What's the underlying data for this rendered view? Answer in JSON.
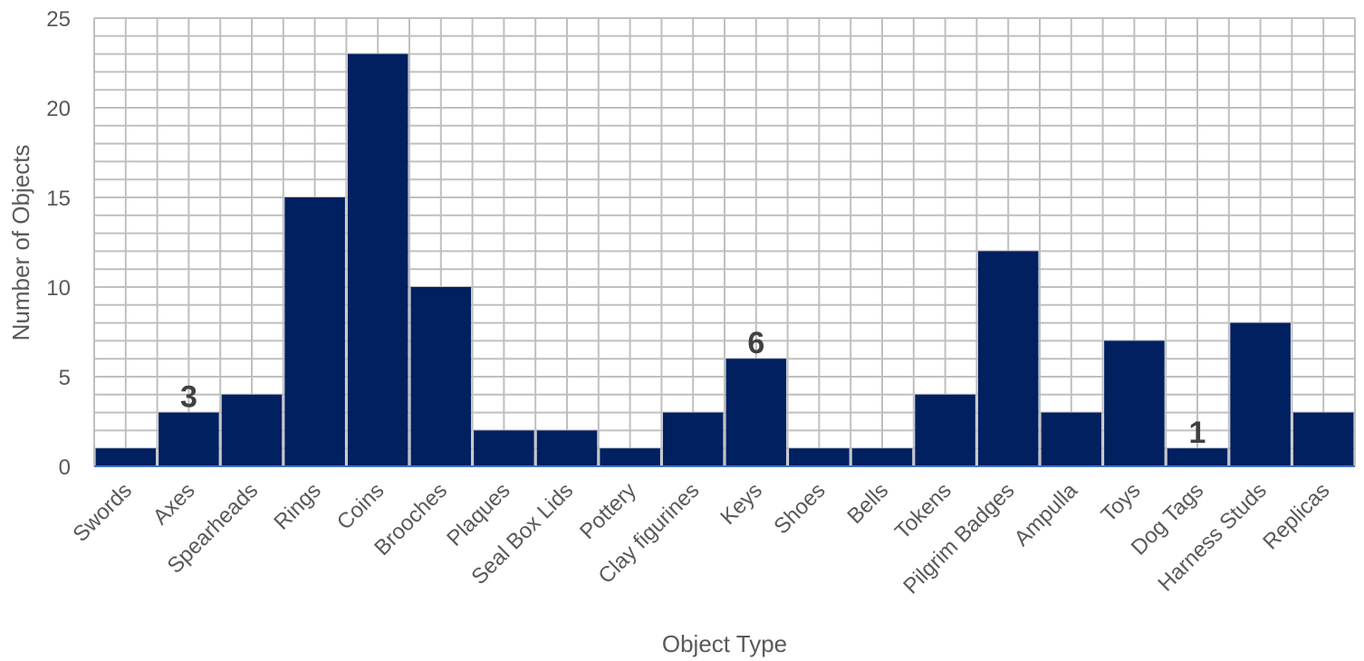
{
  "chart_data": {
    "type": "bar",
    "title": "",
    "xlabel": "Object Type",
    "ylabel": "Number of Objects",
    "ylim": [
      0,
      25
    ],
    "yticks": [
      0,
      5,
      10,
      15,
      20,
      25
    ],
    "grid": true,
    "bar_color": "#002060",
    "categories": [
      "Swords",
      "Axes",
      "Spearheads",
      "Rings",
      "Coins",
      "Brooches",
      "Plaques",
      "Seal Box Lids",
      "Pottery",
      "Clay figurines",
      "Keys",
      "Shoes",
      "Bells",
      "Tokens",
      "Pilgrim Badges",
      "Ampulla",
      "Toys",
      "Dog Tags",
      "Harness Studs",
      "Replicas"
    ],
    "values": [
      1,
      3,
      4,
      15,
      23,
      10,
      2,
      2,
      1,
      3,
      6,
      1,
      1,
      4,
      12,
      3,
      7,
      1,
      8,
      3
    ],
    "data_labels": [
      {
        "category": "Axes",
        "text": "3"
      },
      {
        "category": "Keys",
        "text": "6"
      },
      {
        "category": "Dog Tags",
        "text": "1"
      }
    ]
  }
}
